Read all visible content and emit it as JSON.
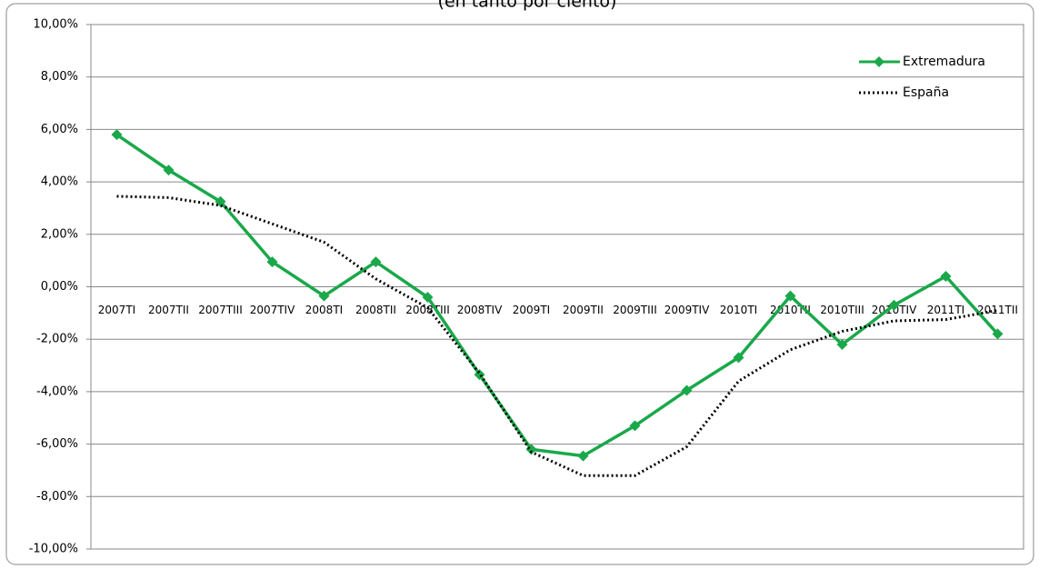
{
  "chart_data": {
    "type": "line",
    "subtitle": "(en tanto por ciento)",
    "categories": [
      "2007TI",
      "2007TII",
      "2007TIII",
      "2007TIV",
      "2008TI",
      "2008TII",
      "2008TIII",
      "2008TIV",
      "2009TI",
      "2009TII",
      "2009TIII",
      "2009TIV",
      "2010TI",
      "2010TII",
      "2010TIII",
      "2010TIV",
      "2011TI",
      "2011TII"
    ],
    "series": [
      {
        "name": "Extremadura",
        "color": "#1aa84a",
        "style": "solid",
        "marker": "diamond",
        "values": [
          5.8,
          4.45,
          3.25,
          0.95,
          -0.35,
          0.95,
          -0.4,
          -3.35,
          -6.2,
          -6.45,
          -5.3,
          -3.95,
          -2.7,
          -0.35,
          -2.2,
          -0.7,
          0.4,
          -1.8
        ]
      },
      {
        "name": "España",
        "color": "#000000",
        "style": "dotted",
        "values": [
          3.45,
          3.4,
          3.1,
          2.4,
          1.7,
          0.3,
          -0.8,
          -3.3,
          -6.3,
          -7.2,
          -7.2,
          -6.1,
          -3.6,
          -2.4,
          -1.7,
          -1.3,
          -1.25,
          -0.9
        ]
      }
    ],
    "ylim": [
      -10,
      10
    ],
    "yticks": [
      {
        "value": -10,
        "label": "-10,00%"
      },
      {
        "value": -8,
        "label": "-8,00%"
      },
      {
        "value": -6,
        "label": "-6,00%"
      },
      {
        "value": -4,
        "label": "-4,00%"
      },
      {
        "value": -2,
        "label": "-2,00%"
      },
      {
        "value": 0,
        "label": "0,00%"
      },
      {
        "value": 2,
        "label": "2,00%"
      },
      {
        "value": 4,
        "label": "4,00%"
      },
      {
        "value": 6,
        "label": "6,00%"
      },
      {
        "value": 8,
        "label": "8,00%"
      },
      {
        "value": 10,
        "label": "10,00%"
      }
    ],
    "grid": true,
    "legend": "top-right"
  }
}
